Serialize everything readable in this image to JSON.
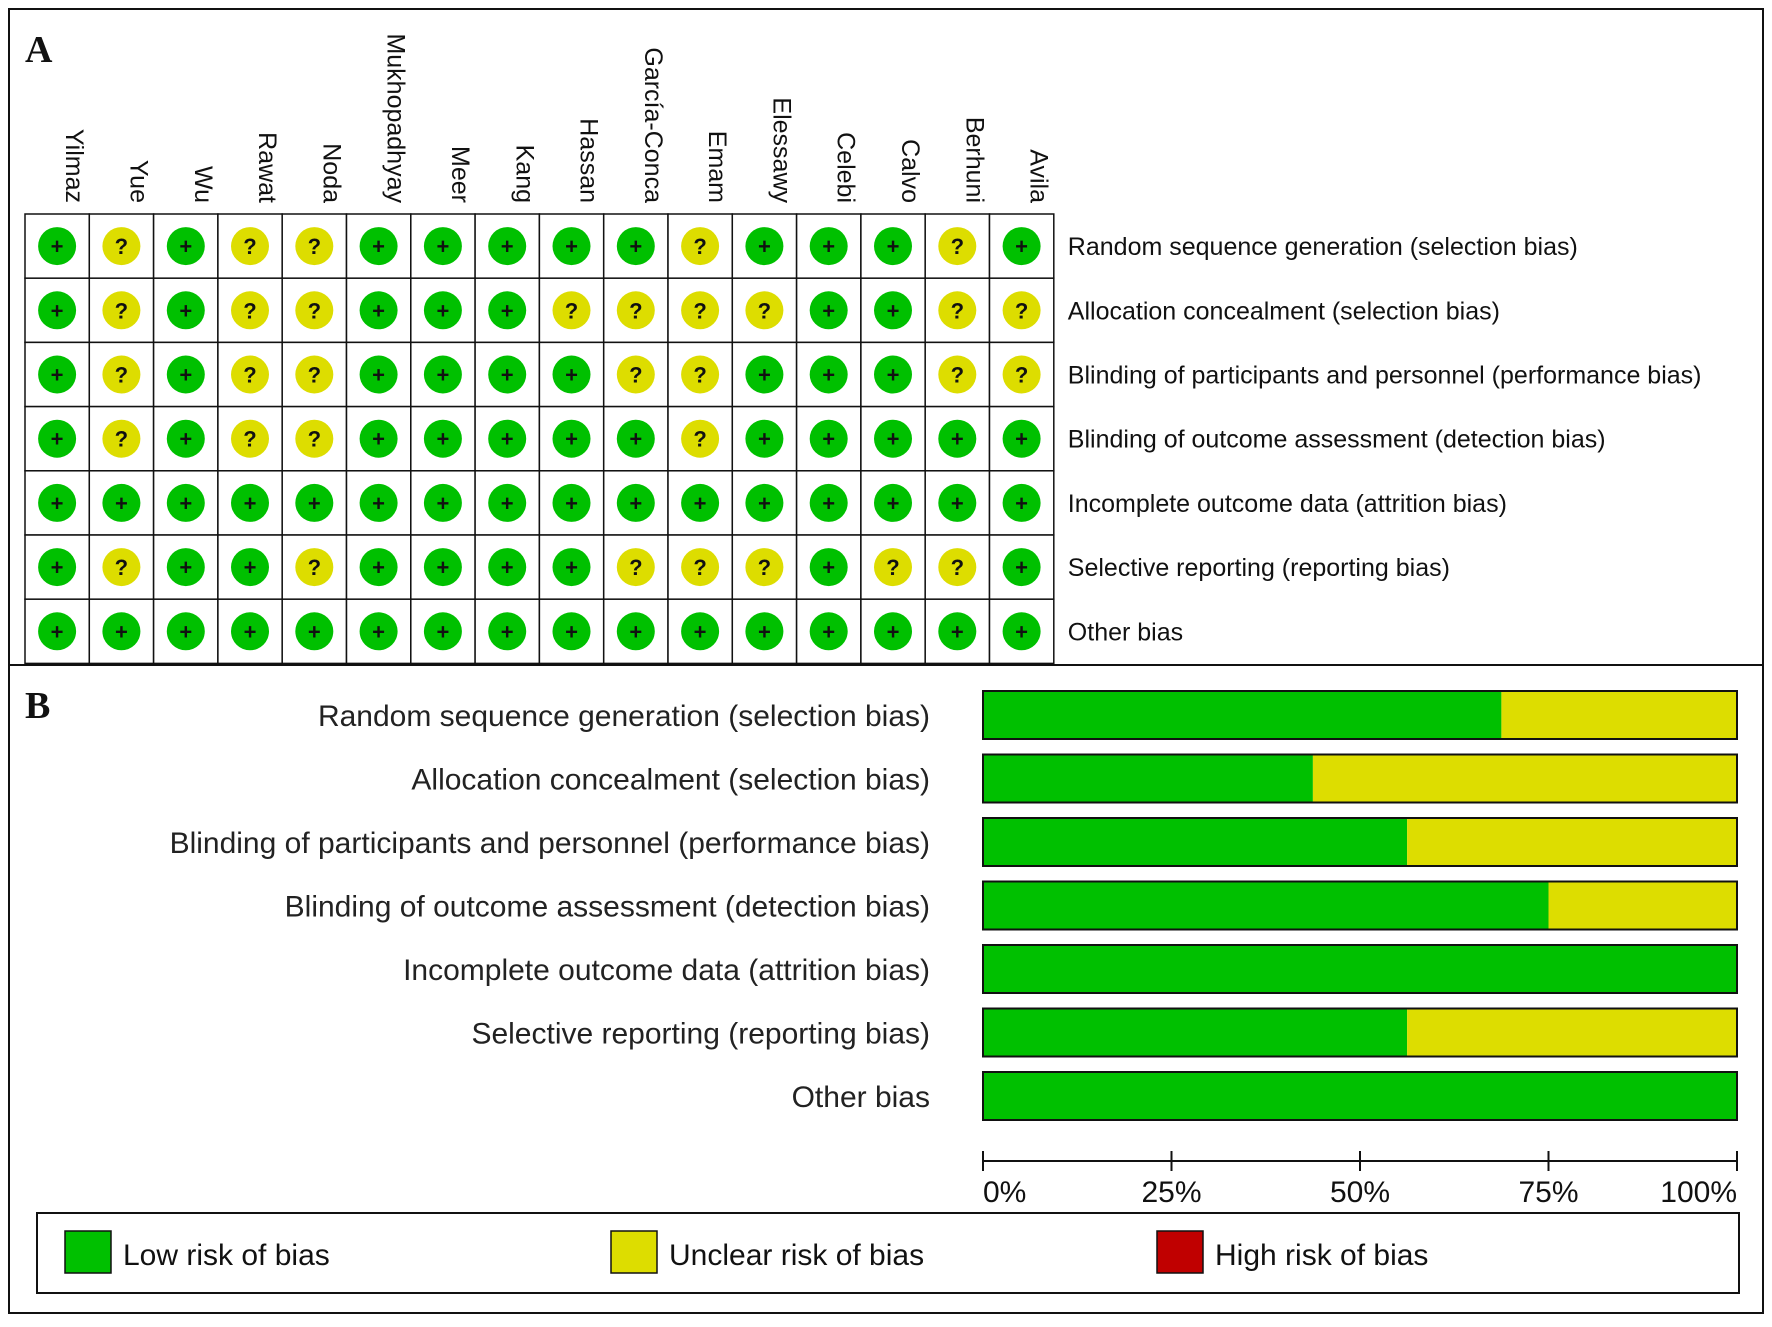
{
  "colors": {
    "low": "#00c000",
    "unclear": "#dddd00",
    "high": "#c00000",
    "border": "#111111"
  },
  "panels": {
    "a": "A",
    "b": "B"
  },
  "studies": [
    "Yilmaz",
    "Yue",
    "Wu",
    "Rawat",
    "Noda",
    "Mukhopadhyay",
    "Meer",
    "Kang",
    "Hassan",
    "García-Conca",
    "Emam",
    "Elessawy",
    "Celebi",
    "Calvo",
    "Berhuni",
    "Avila"
  ],
  "domains": [
    "Random sequence generation (selection bias)",
    "Allocation concealment (selection bias)",
    "Blinding of participants and personnel (performance bias)",
    "Blinding of outcome assessment (detection bias)",
    "Incomplete outcome data (attrition bias)",
    "Selective reporting (reporting bias)",
    "Other bias"
  ],
  "symbols": {
    "low": "+",
    "unclear": "?"
  },
  "judgements": [
    [
      "low",
      "unclear",
      "low",
      "unclear",
      "unclear",
      "low",
      "low",
      "low",
      "low",
      "low",
      "unclear",
      "low",
      "low",
      "low",
      "unclear",
      "low"
    ],
    [
      "low",
      "unclear",
      "low",
      "unclear",
      "unclear",
      "low",
      "low",
      "low",
      "unclear",
      "unclear",
      "unclear",
      "unclear",
      "low",
      "low",
      "unclear",
      "unclear"
    ],
    [
      "low",
      "unclear",
      "low",
      "unclear",
      "unclear",
      "low",
      "low",
      "low",
      "low",
      "unclear",
      "unclear",
      "low",
      "low",
      "low",
      "unclear",
      "unclear"
    ],
    [
      "low",
      "unclear",
      "low",
      "unclear",
      "unclear",
      "low",
      "low",
      "low",
      "low",
      "low",
      "unclear",
      "low",
      "low",
      "low",
      "low",
      "low"
    ],
    [
      "low",
      "low",
      "low",
      "low",
      "low",
      "low",
      "low",
      "low",
      "low",
      "low",
      "low",
      "low",
      "low",
      "low",
      "low",
      "low"
    ],
    [
      "low",
      "unclear",
      "low",
      "low",
      "unclear",
      "low",
      "low",
      "low",
      "low",
      "unclear",
      "unclear",
      "unclear",
      "low",
      "unclear",
      "unclear",
      "low"
    ],
    [
      "low",
      "low",
      "low",
      "low",
      "low",
      "low",
      "low",
      "low",
      "low",
      "low",
      "low",
      "low",
      "low",
      "low",
      "low",
      "low"
    ]
  ],
  "chart_data": {
    "type": "bar",
    "stacked": true,
    "orientation": "horizontal",
    "categories": [
      "Random sequence generation (selection bias)",
      "Allocation concealment (selection bias)",
      "Blinding of participants and personnel (performance bias)",
      "Blinding of outcome assessment (detection bias)",
      "Incomplete outcome data (attrition bias)",
      "Selective reporting (reporting bias)",
      "Other bias"
    ],
    "series": [
      {
        "name": "Low risk of bias",
        "key": "low",
        "values": [
          68.75,
          43.75,
          56.25,
          75,
          100,
          56.25,
          100
        ]
      },
      {
        "name": "Unclear risk of bias",
        "key": "unclear",
        "values": [
          31.25,
          56.25,
          43.75,
          25,
          0,
          43.75,
          0
        ]
      },
      {
        "name": "High risk of bias",
        "key": "high",
        "values": [
          0,
          0,
          0,
          0,
          0,
          0,
          0
        ]
      }
    ],
    "xlim": [
      0,
      100
    ],
    "ticks": [
      "0%",
      "25%",
      "50%",
      "75%",
      "100%"
    ],
    "legend": [
      "Low risk of bias",
      "Unclear risk of bias",
      "High risk of bias"
    ],
    "legend_position": "bottom"
  }
}
